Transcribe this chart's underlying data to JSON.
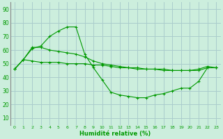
{
  "title": "",
  "xlabel": "Humidité relative (%)",
  "ylabel": "",
  "background_color": "#cceedd",
  "grid_color": "#aacccc",
  "line_color": "#009900",
  "marker_color": "#009900",
  "xlim": [
    -0.5,
    23.5
  ],
  "ylim": [
    5,
    95
  ],
  "yticks": [
    10,
    20,
    30,
    40,
    50,
    60,
    70,
    80,
    90
  ],
  "xticks": [
    0,
    1,
    2,
    3,
    4,
    5,
    6,
    7,
    8,
    9,
    10,
    11,
    12,
    13,
    14,
    15,
    16,
    17,
    18,
    19,
    20,
    21,
    22,
    23
  ],
  "series1": [
    46,
    53,
    61,
    63,
    70,
    74,
    77,
    77,
    57,
    47,
    38,
    29,
    27,
    26,
    25,
    25,
    27,
    28,
    30,
    32,
    32,
    37,
    47,
    47
  ],
  "series2": [
    46,
    53,
    62,
    62,
    60,
    59,
    58,
    57,
    55,
    52,
    50,
    49,
    48,
    47,
    47,
    46,
    46,
    46,
    45,
    45,
    45,
    46,
    48,
    47
  ],
  "series3": [
    46,
    53,
    52,
    51,
    51,
    51,
    50,
    50,
    50,
    49,
    49,
    48,
    47,
    47,
    46,
    46,
    46,
    45,
    45,
    45,
    45,
    45,
    47,
    47
  ]
}
